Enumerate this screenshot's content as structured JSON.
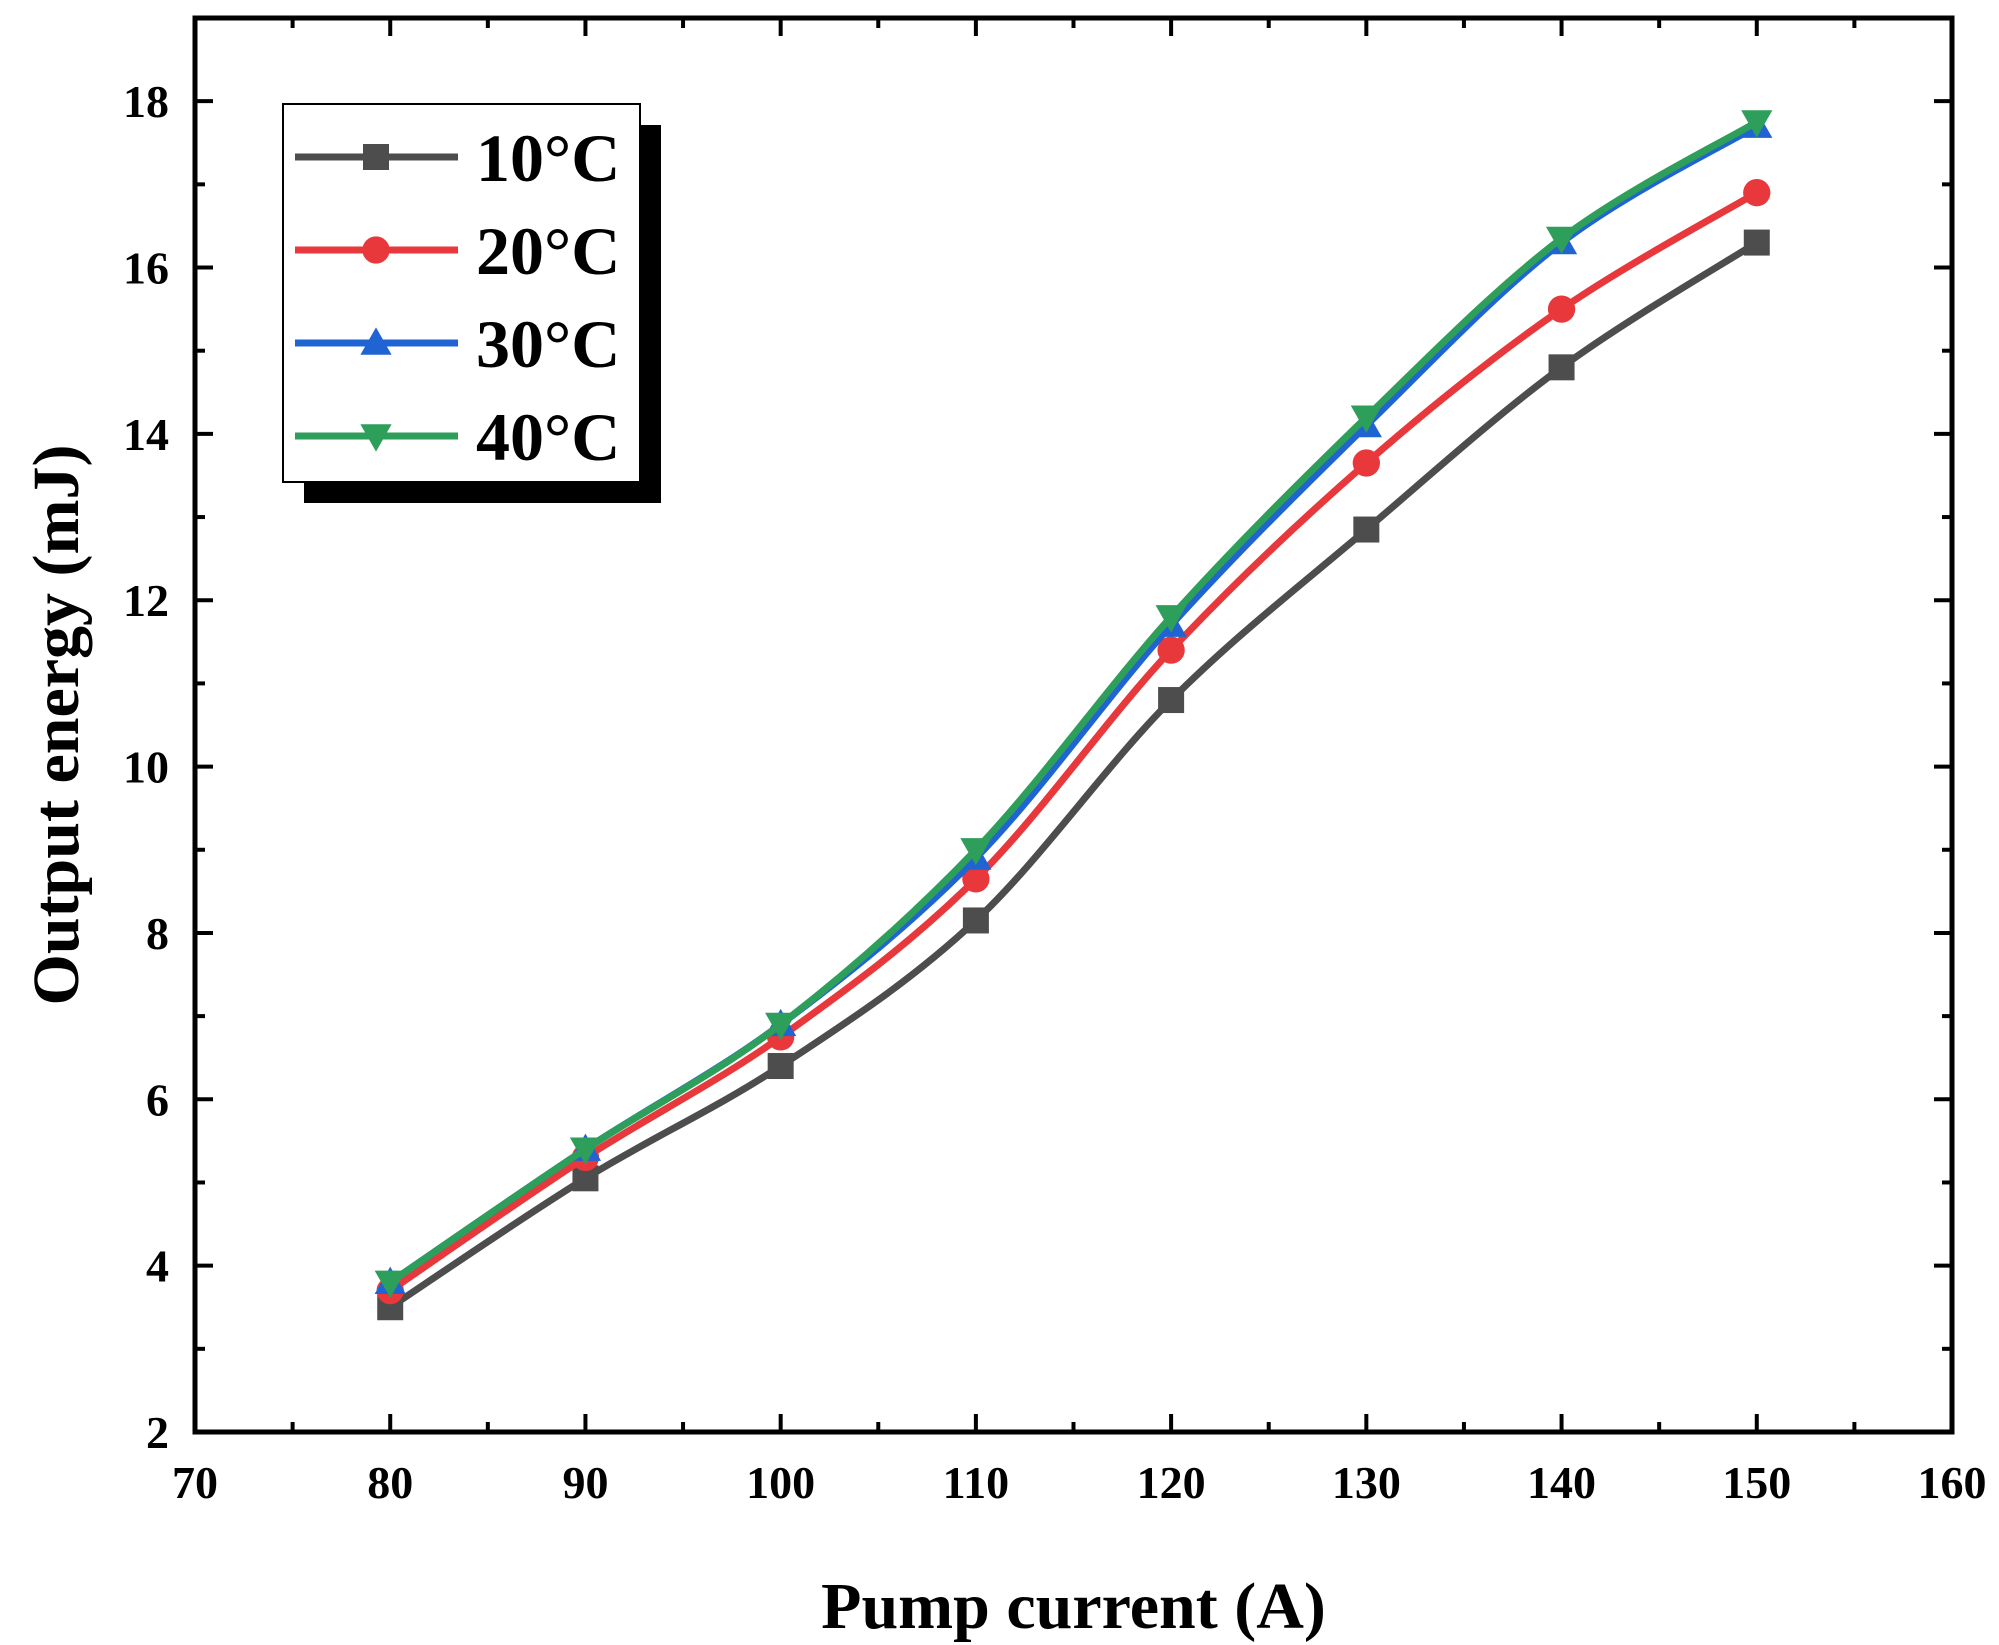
{
  "chart_data": {
    "type": "line",
    "title": "",
    "xlabel": "Pump current (A)",
    "ylabel": "Output energy (mJ)",
    "xlim": [
      70,
      160
    ],
    "ylim": [
      2,
      19
    ],
    "xticks": [
      70,
      80,
      90,
      100,
      110,
      120,
      130,
      140,
      150,
      160
    ],
    "yticks": [
      2,
      4,
      6,
      8,
      10,
      12,
      14,
      16,
      18
    ],
    "x": [
      80,
      90,
      100,
      110,
      120,
      130,
      140,
      150
    ],
    "grid": false,
    "legend_position": "top-left",
    "series": [
      {
        "name": "10°C",
        "marker": "square",
        "color": "#4d4d4d",
        "values": [
          3.5,
          5.05,
          6.4,
          8.15,
          10.8,
          12.85,
          14.8,
          16.3
        ]
      },
      {
        "name": "20°C",
        "marker": "circle",
        "color": "#e8383b",
        "values": [
          3.7,
          5.3,
          6.75,
          8.65,
          11.4,
          13.65,
          15.5,
          16.9
        ]
      },
      {
        "name": "30°C",
        "marker": "triangle-up",
        "color": "#1f64d2",
        "values": [
          3.8,
          5.4,
          6.9,
          8.9,
          11.7,
          14.1,
          16.3,
          17.7
        ]
      },
      {
        "name": "40°C",
        "marker": "triangle-down",
        "color": "#2e9e5b",
        "values": [
          3.8,
          5.4,
          6.9,
          9.0,
          11.8,
          14.2,
          16.35,
          17.75
        ]
      }
    ]
  }
}
